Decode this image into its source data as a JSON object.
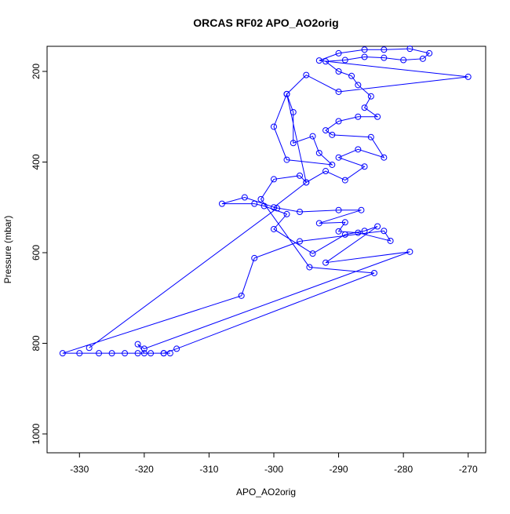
{
  "chart_data": {
    "type": "line",
    "title": "ORCAS RF02 APO_AO2orig",
    "x_label": "APO_AO2orig",
    "y_label": "Pressure (mbar)",
    "color": "#0000ff",
    "markers": "open-circle",
    "x": [
      -328.5,
      -299.5,
      -304.5,
      -308,
      -303,
      -301.5,
      -298,
      -300,
      -294,
      -289,
      -286,
      -284,
      -292,
      -279,
      -320,
      -321,
      -320,
      -317,
      -315,
      -284.5,
      -294.5,
      -302,
      -300,
      -296,
      -295,
      -292,
      -289,
      -286,
      -290,
      -287,
      -283,
      -285,
      -291,
      -292,
      -290,
      -287,
      -284,
      -286,
      -285,
      -287,
      -288,
      -290,
      -292,
      -289,
      -286,
      -283,
      -280,
      -277,
      -276,
      -279,
      -283,
      -286,
      -290,
      -293,
      -270,
      -290,
      -295,
      -298,
      -297,
      -297,
      -294,
      -293,
      -291,
      -298,
      -300,
      -298,
      -295,
      -300,
      -296,
      -290,
      -286.5,
      -293,
      -289,
      -290,
      -287,
      -282,
      -283,
      -296,
      -303,
      -305,
      -332.6,
      -330,
      -327,
      -325,
      -323,
      -321,
      -319,
      -317,
      -316
    ],
    "values": [
      810,
      502,
      478,
      492,
      492,
      497,
      515,
      548,
      602,
      560,
      552,
      542,
      622,
      598,
      812,
      802,
      822,
      822,
      812,
      645,
      632,
      482,
      438,
      430,
      445,
      420,
      440,
      410,
      390,
      372,
      390,
      345,
      340,
      330,
      310,
      300,
      300,
      280,
      255,
      230,
      210,
      200,
      178,
      175,
      168,
      170,
      175,
      172,
      160,
      150,
      152,
      152,
      160,
      176,
      212,
      245,
      208,
      250,
      290,
      358,
      343,
      380,
      406,
      395,
      322,
      250,
      445,
      500,
      510,
      506,
      506,
      535,
      533,
      553,
      556,
      574,
      552,
      575,
      612,
      695,
      822,
      822,
      822,
      822,
      822,
      822,
      822,
      822,
      822
    ],
    "xlim": [
      -335,
      -267.3
    ],
    "ylim": [
      1041.6,
      144.6
    ],
    "xticks": [
      -330,
      -320,
      -310,
      -300,
      -290,
      -280,
      -270
    ],
    "yticks": [
      200,
      400,
      600,
      800,
      1000
    ]
  }
}
